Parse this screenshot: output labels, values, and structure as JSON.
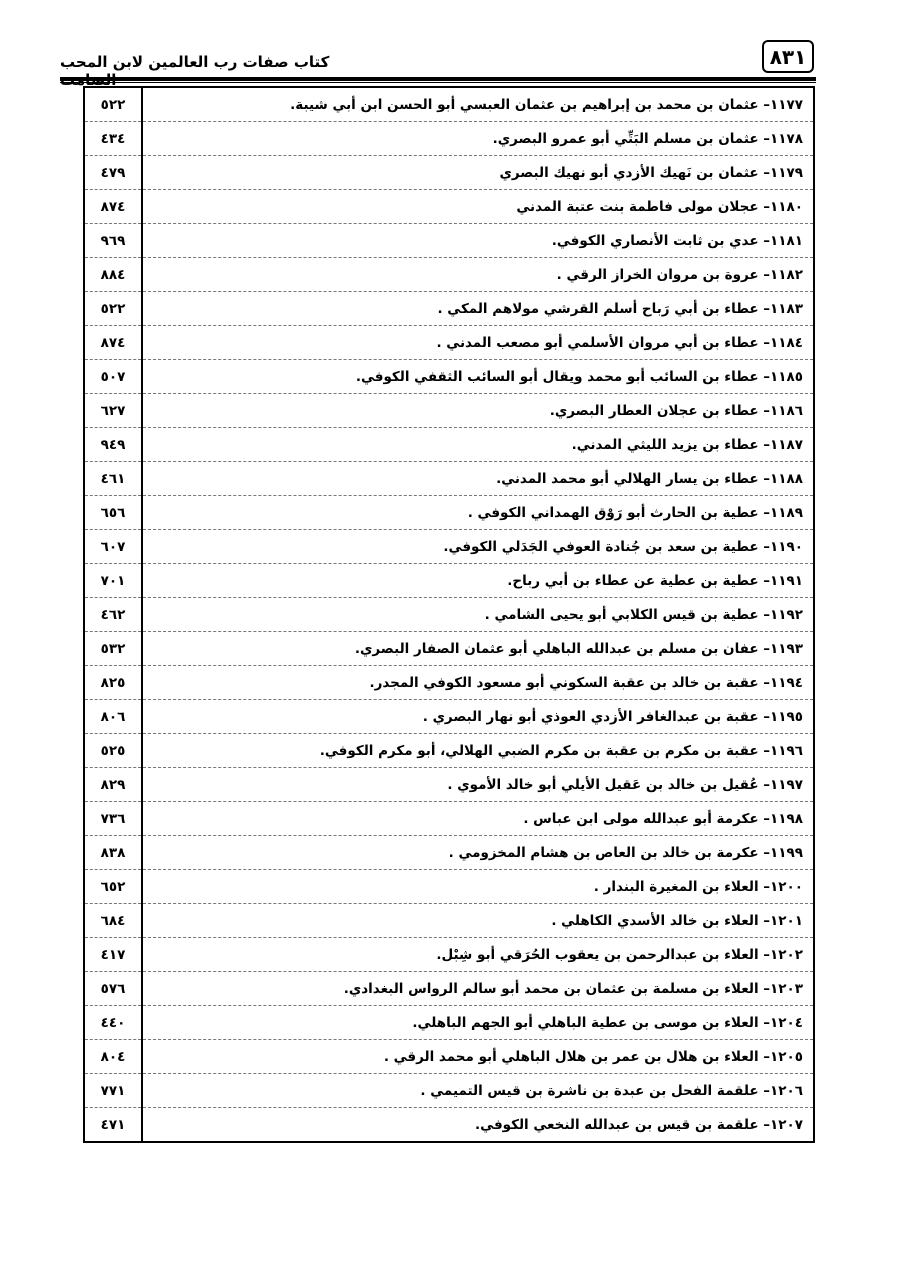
{
  "header": {
    "page_number": "٨٣١",
    "title": "كتاب صفات رب العالمين لابن المحب الصامت"
  },
  "rows": [
    {
      "entry": "١١٧٧– عثمان بن محمد بن إبراهيم بن عثمان العبسي أبو الحسن ابن أبي شيبة.",
      "page": "٥٢٢"
    },
    {
      "entry": "١١٧٨– عثمان بن مسلم البَتِّي أبو عمرو البصري.",
      "page": "٤٣٤"
    },
    {
      "entry": "١١٧٩– عثمان بن نَهيك الأزدي أبو نهيك البصري",
      "page": "٤٧٩"
    },
    {
      "entry": "١١٨٠– عجلان مولى فاطمة بنت عتبة المدني",
      "page": "٨٧٤"
    },
    {
      "entry": "١١٨١– عدي بن ثابت الأنصاري الكوفي.",
      "page": "٩٦٩"
    },
    {
      "entry": "١١٨٢– عروة بن مروان الخراز الرقي .",
      "page": "٨٨٤"
    },
    {
      "entry": "١١٨٣– عطاء بن أبي رَباح أسلم القرشي مولاهم المكي .",
      "page": "٥٢٢"
    },
    {
      "entry": "١١٨٤– عطاء بن أبي مروان الأسلمي أبو مصعب المدني .",
      "page": "٨٧٤"
    },
    {
      "entry": "١١٨٥– عطاء بن السائب أبو محمد ويقال أبو السائب الثقفي الكوفي.",
      "page": "٥٠٧"
    },
    {
      "entry": "١١٨٦– عطاء بن عجلان العطار البصري.",
      "page": "٦٢٧"
    },
    {
      "entry": "١١٨٧– عطاء بن يزيد الليثي المدني.",
      "page": "٩٤٩"
    },
    {
      "entry": "١١٨٨– عطاء بن يسار الهلالي أبو محمد المدني.",
      "page": "٤٦١"
    },
    {
      "entry": "١١٨٩– عطية بن الحارث أبو رَوْق الهمداني الكوفي .",
      "page": "٦٥٦"
    },
    {
      "entry": "١١٩٠– عطية بن سعد بن جُنادة العوفي الجَدَلي الكوفي.",
      "page": "٦٠٧"
    },
    {
      "entry": "١١٩١– عطية بن عطية عن عطاء بن أبي رباح.",
      "page": "٧٠١"
    },
    {
      "entry": "١١٩٢– عطية بن قيس الكلابي أبو يحيى الشامي .",
      "page": "٤٦٢"
    },
    {
      "entry": "١١٩٣– عفان بن مسلم بن عبدالله الباهلي أبو عثمان الصفار البصري.",
      "page": "٥٣٢"
    },
    {
      "entry": "١١٩٤– عقبة بن خالد بن عقبة السكوني أبو مسعود الكوفي المجدر.",
      "page": "٨٢٥"
    },
    {
      "entry": "١١٩٥– عقبة بن عبدالغافر الأزدي العوذي أبو نهار البصري .",
      "page": "٨٠٦"
    },
    {
      "entry": "١١٩٦– عقبة بن مكرم بن عقبة بن مكرم الضبي الهلالي، أبو مكرم الكوفي.",
      "page": "٥٢٥"
    },
    {
      "entry": "١١٩٧– عُقيل بن خالد بن عَقيل الأيلي أبو خالد الأموي .",
      "page": "٨٢٩"
    },
    {
      "entry": "١١٩٨– عكرمة أبو عبدالله مولى ابن عباس .",
      "page": "٧٣٦"
    },
    {
      "entry": "١١٩٩– عكرمة بن خالد بن العاص بن هشام المخزومي .",
      "page": "٨٣٨"
    },
    {
      "entry": "١٢٠٠– العلاء بن المغيرة البندار .",
      "page": "٦٥٢"
    },
    {
      "entry": "١٢٠١– العلاء بن خالد الأسدي الكاهلي .",
      "page": "٦٨٤"
    },
    {
      "entry": "١٢٠٢– العلاء بن عبدالرحمن بن يعقوب الحُرَقي أبو شِبْل.",
      "page": "٤١٧"
    },
    {
      "entry": "١٢٠٣– العلاء بن مسلمة بن عثمان بن محمد أبو سالم الرواس البغدادي.",
      "page": "٥٧٦"
    },
    {
      "entry": "١٢٠٤– العلاء بن موسى بن عطية الباهلي أبو الجهم الباهلي.",
      "page": "٤٤٠"
    },
    {
      "entry": "١٢٠٥– العلاء بن هلال بن عمر بن هلال الباهلي أبو محمد الرقي .",
      "page": "٨٠٤"
    },
    {
      "entry": "١٢٠٦– علقمة الفحل بن عبدة بن ناشرة بن قيس التميمي .",
      "page": "٧٧١"
    },
    {
      "entry": "١٢٠٧– علقمة بن قيس بن عبدالله النخعي الكوفي.",
      "page": "٤٧١"
    }
  ]
}
